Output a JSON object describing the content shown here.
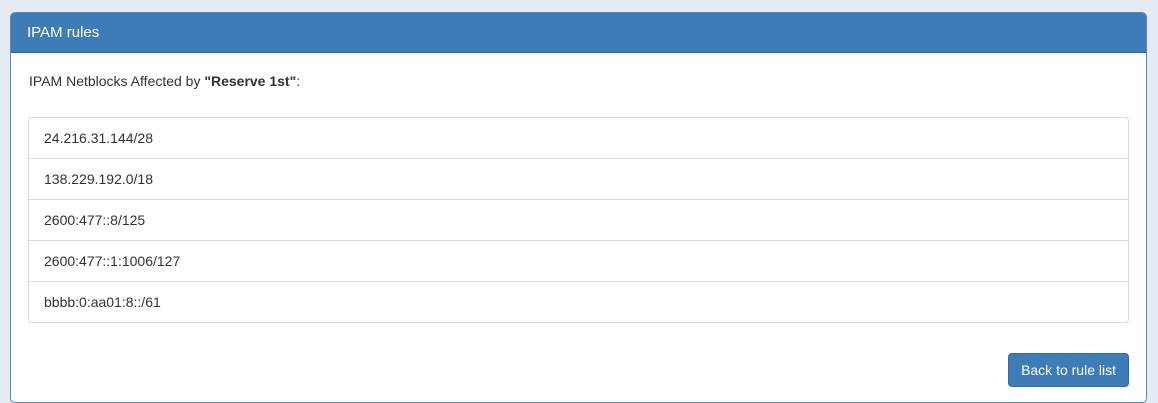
{
  "page": {
    "background_color": "#e4ebf3"
  },
  "panel": {
    "title": "IPAM rules",
    "header_bg_color": "#3e7cb8",
    "header_text_color": "#ffffff",
    "border_color": "#5d89b4"
  },
  "body": {
    "affected_prefix": "IPAM Netblocks Affected by ",
    "rule_name_quoted": "\"Reserve 1st\"",
    "affected_suffix": ":"
  },
  "netblocks": [
    "24.216.31.144/28",
    "138.229.192.0/18",
    "2600:477::8/125",
    "2600:477::1:1006/127",
    "bbbb:0:aa01:8::/61"
  ],
  "footer": {
    "back_button_label": "Back to rule list",
    "button_color": "#3e7cb8"
  }
}
